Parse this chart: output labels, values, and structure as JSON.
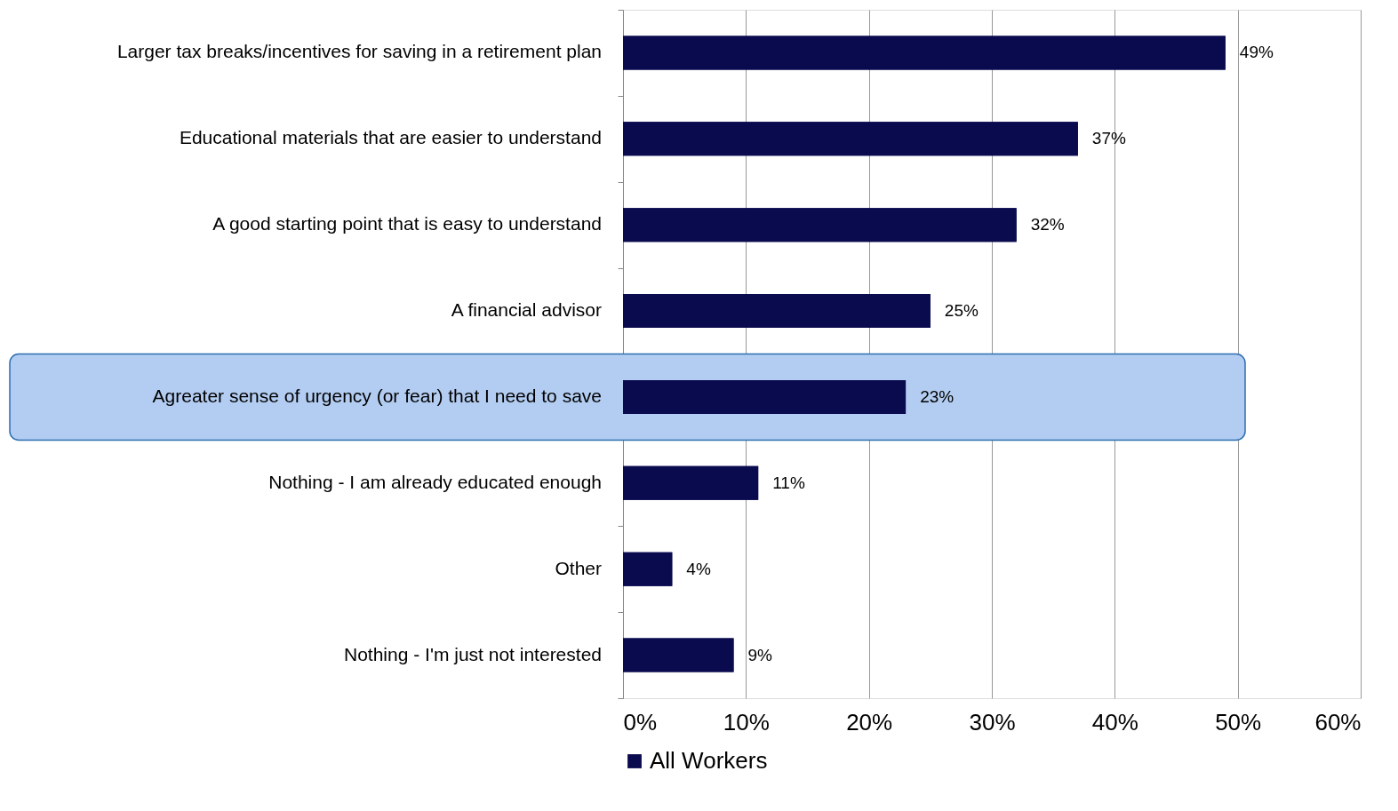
{
  "chart_data": {
    "type": "bar",
    "orientation": "horizontal",
    "categories": [
      "Larger tax breaks/incentives for saving in a retirement plan",
      "Educational materials that are easier to understand",
      "A good starting point that is easy to understand",
      "A financial advisor",
      "Agreater sense of urgency (or fear) that I need to save",
      "Nothing - I am already educated enough",
      "Other",
      "Nothing - I'm just not interested"
    ],
    "series": [
      {
        "name": "All Workers",
        "color": "#0a0a4f",
        "values": [
          49,
          37,
          32,
          25,
          23,
          11,
          4,
          9
        ],
        "value_labels": [
          "49%",
          "37%",
          "32%",
          "25%",
          "23%",
          "11%",
          "4%",
          "9%"
        ]
      }
    ],
    "xlim": [
      0,
      60
    ],
    "xticks": [
      {
        "value": 0,
        "label": "0%"
      },
      {
        "value": 10,
        "label": "10%"
      },
      {
        "value": 20,
        "label": "20%"
      },
      {
        "value": 30,
        "label": "30%"
      },
      {
        "value": 40,
        "label": "40%"
      },
      {
        "value": 50,
        "label": "50%"
      },
      {
        "value": 60,
        "label": "60%"
      }
    ],
    "grid": "x",
    "legend": "bottom",
    "bands": [
      {
        "axis": "y",
        "from": "Agreater sense of urgency (or fear) that I need to save",
        "to": "Agreater sense of urgency (or fear) that I need to save",
        "color": "#b3cdf2"
      }
    ]
  }
}
